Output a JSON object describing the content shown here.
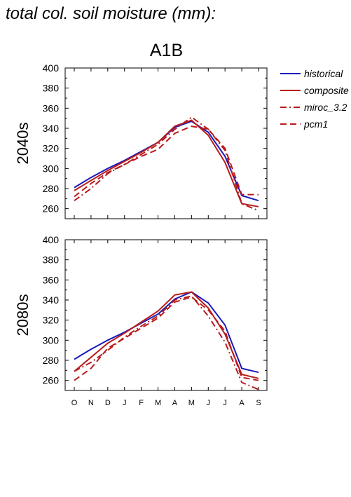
{
  "page": {
    "header": "total col. soil moisture (mm):",
    "scenario": "A1B"
  },
  "colors": {
    "historical": "#1a1ab8",
    "composite": "#b81c1c",
    "miroc_3.2": "#b81c1c",
    "pcm1": "#b81c1c"
  },
  "legend": {
    "placement": "right",
    "items": [
      {
        "label": "historical",
        "style": "solid",
        "color_key": "historical"
      },
      {
        "label": "composite",
        "style": "solid",
        "color_key": "composite"
      },
      {
        "label": "miroc_3.2",
        "style": "dashdot",
        "color_key": "miroc_3.2"
      },
      {
        "label": "pcm1",
        "style": "dashed",
        "color_key": "pcm1"
      }
    ]
  },
  "chart_data": [
    {
      "type": "line",
      "panel_label": "2040s",
      "categories": [
        "O",
        "N",
        "D",
        "J",
        "F",
        "M",
        "A",
        "M",
        "J",
        "J",
        "A",
        "S"
      ],
      "ylim": [
        250,
        400
      ],
      "yticks": [
        260,
        280,
        300,
        320,
        340,
        360,
        380,
        400
      ],
      "grid": false,
      "series": [
        {
          "name": "historical",
          "values": [
            281,
            291,
            300,
            308,
            317,
            326,
            341,
            347,
            336,
            312,
            273,
            268
          ]
        },
        {
          "name": "composite",
          "values": [
            278,
            288,
            298,
            307,
            316,
            326,
            342,
            348,
            333,
            306,
            265,
            262
          ]
        },
        {
          "name": "miroc_3.2",
          "values": [
            268,
            280,
            295,
            304,
            314,
            324,
            339,
            351,
            339,
            318,
            265,
            258
          ]
        },
        {
          "name": "pcm1",
          "values": [
            272,
            285,
            296,
            304,
            312,
            319,
            335,
            342,
            339,
            320,
            274,
            274
          ]
        }
      ]
    },
    {
      "type": "line",
      "panel_label": "2080s",
      "categories": [
        "O",
        "N",
        "D",
        "J",
        "F",
        "M",
        "A",
        "M",
        "J",
        "J",
        "A",
        "S"
      ],
      "ylim": [
        250,
        400
      ],
      "yticks": [
        260,
        280,
        300,
        320,
        340,
        360,
        380,
        400
      ],
      "grid": false,
      "series": [
        {
          "name": "historical",
          "values": [
            281,
            291,
            300,
            308,
            317,
            326,
            341,
            348,
            337,
            315,
            272,
            268
          ]
        },
        {
          "name": "composite",
          "values": [
            269,
            283,
            297,
            307,
            318,
            329,
            345,
            348,
            332,
            306,
            266,
            262
          ]
        },
        {
          "name": "miroc_3.2",
          "values": [
            269,
            278,
            290,
            303,
            314,
            324,
            340,
            344,
            324,
            298,
            258,
            251
          ]
        },
        {
          "name": "pcm1",
          "values": [
            260,
            272,
            292,
            302,
            312,
            322,
            338,
            343,
            330,
            309,
            263,
            260
          ]
        }
      ]
    }
  ]
}
